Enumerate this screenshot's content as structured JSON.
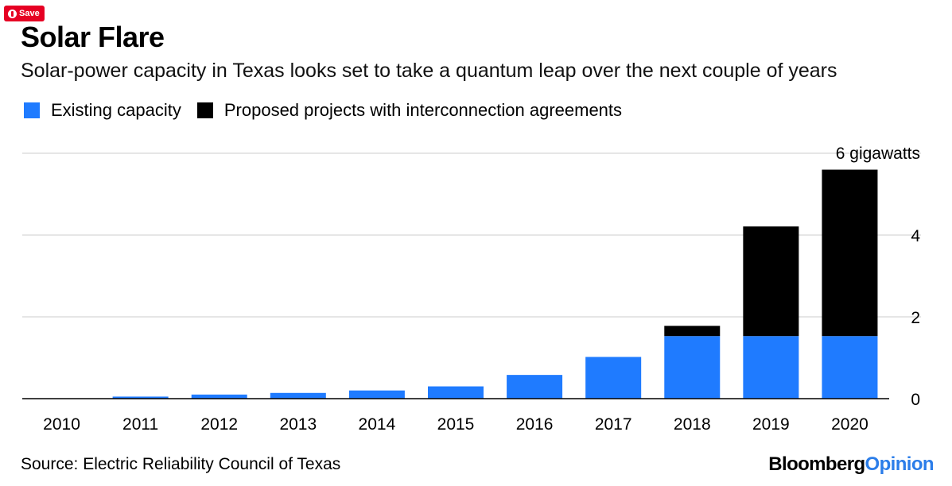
{
  "save_button": {
    "label": "Save",
    "color": "#e60023"
  },
  "title": "Solar Flare",
  "subtitle": "Solar-power capacity in Texas looks set to take a quantum leap over the next couple of years",
  "legend": [
    {
      "label": "Existing capacity",
      "color": "#1f7bff"
    },
    {
      "label": "Proposed projects with interconnection agreements",
      "color": "#000000"
    }
  ],
  "source": "Source: Electric Reliability Council of Texas",
  "brand": {
    "part1": "Bloomberg",
    "part2": "Opinion"
  },
  "chart_data": {
    "type": "bar",
    "stacked": true,
    "categories": [
      "2010",
      "2011",
      "2012",
      "2013",
      "2014",
      "2015",
      "2016",
      "2017",
      "2018",
      "2019",
      "2020"
    ],
    "series": [
      {
        "name": "Existing capacity",
        "color": "#1f7bff",
        "values": [
          0.0,
          0.05,
          0.1,
          0.14,
          0.2,
          0.3,
          0.58,
          1.02,
          1.53,
          1.53,
          1.53
        ]
      },
      {
        "name": "Proposed projects with interconnection agreements",
        "color": "#000000",
        "values": [
          0.0,
          0.0,
          0.0,
          0.0,
          0.0,
          0.0,
          0.0,
          0.0,
          0.25,
          2.68,
          4.07
        ]
      }
    ],
    "y_axis": {
      "ticks": [
        0,
        2,
        4,
        6
      ],
      "tick_labels": [
        "0",
        "2",
        "4",
        "6 gigawatts"
      ],
      "ylim": [
        0,
        6
      ],
      "side": "right"
    },
    "grid": true
  }
}
